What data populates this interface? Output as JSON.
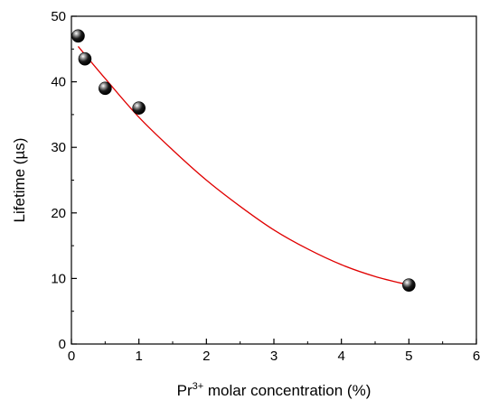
{
  "chart_data": {
    "type": "scatter",
    "title": "",
    "xlabel_prefix": "Pr",
    "xlabel_superscript": "3+",
    "xlabel_suffix": " molar concentration (%)",
    "ylabel": "Lifetime (µs)",
    "xlim": [
      0,
      6
    ],
    "ylim": [
      0,
      50
    ],
    "x_ticks": [
      "0",
      "1",
      "2",
      "3",
      "4",
      "5",
      "6"
    ],
    "y_ticks": [
      "0",
      "10",
      "20",
      "30",
      "40",
      "50"
    ],
    "grid": false,
    "legend": "none",
    "series": [
      {
        "x": [
          0.1,
          0.2,
          0.5,
          1.0,
          5.0
        ],
        "y": [
          47.0,
          43.5,
          39.0,
          36.0,
          9.0
        ],
        "marker_color": "#000000"
      }
    ],
    "fit_curve": {
      "color": "#e00000",
      "x": [
        0.1,
        0.5,
        1.0,
        1.5,
        2.0,
        2.5,
        3.0,
        3.5,
        4.0,
        4.5,
        5.0
      ],
      "y": [
        45.4,
        40.5,
        34.6,
        29.6,
        25.0,
        21.0,
        17.4,
        14.5,
        12.1,
        10.3,
        9.0
      ]
    }
  }
}
